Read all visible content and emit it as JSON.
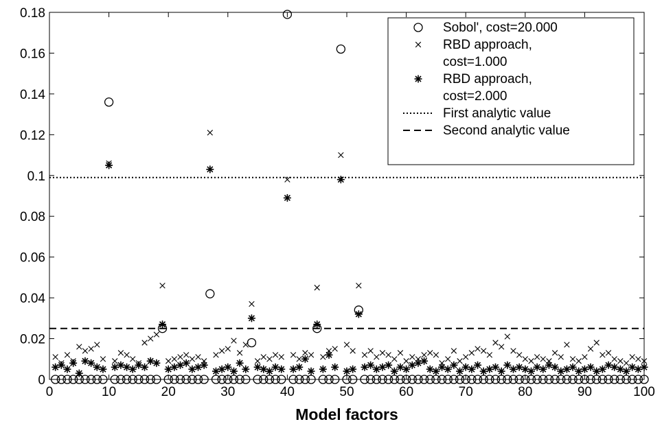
{
  "chart_data": {
    "type": "scatter",
    "title": "",
    "xlabel": "Model factors",
    "ylabel": "",
    "xlim": [
      0,
      100
    ],
    "ylim": [
      0,
      0.18
    ],
    "xticks": [
      0,
      10,
      20,
      30,
      40,
      50,
      60,
      70,
      80,
      90,
      100
    ],
    "yticks": [
      0,
      0.02,
      0.04,
      0.06,
      0.08,
      0.1,
      0.12,
      0.14,
      0.16,
      0.18
    ],
    "grid": false,
    "legend_position": "top-right",
    "series": [
      {
        "name": "Sobol', cost=20.000",
        "marker": "circle",
        "points": [
          [
            10,
            0.136
          ],
          [
            19,
            0.025
          ],
          [
            27,
            0.042
          ],
          [
            34,
            0.018
          ],
          [
            40,
            0.179
          ],
          [
            45,
            0.025
          ],
          [
            49,
            0.162
          ],
          [
            52,
            0.034
          ]
        ],
        "baseline_value": 0.0
      },
      {
        "name": "RBD approach,\ncost=1.000",
        "marker": "x",
        "points": [
          [
            1,
            0.011
          ],
          [
            2,
            0.008
          ],
          [
            3,
            0.012
          ],
          [
            4,
            0.009
          ],
          [
            5,
            0.016
          ],
          [
            6,
            0.014
          ],
          [
            7,
            0.015
          ],
          [
            8,
            0.017
          ],
          [
            9,
            0.01
          ],
          [
            10,
            0.106
          ],
          [
            11,
            0.009
          ],
          [
            12,
            0.013
          ],
          [
            13,
            0.012
          ],
          [
            14,
            0.01
          ],
          [
            15,
            0.008
          ],
          [
            16,
            0.018
          ],
          [
            17,
            0.02
          ],
          [
            18,
            0.022
          ],
          [
            19,
            0.046
          ],
          [
            20,
            0.009
          ],
          [
            21,
            0.01
          ],
          [
            22,
            0.011
          ],
          [
            23,
            0.012
          ],
          [
            24,
            0.01
          ],
          [
            25,
            0.011
          ],
          [
            26,
            0.009
          ],
          [
            27,
            0.121
          ],
          [
            28,
            0.012
          ],
          [
            29,
            0.014
          ],
          [
            30,
            0.015
          ],
          [
            31,
            0.019
          ],
          [
            32,
            0.013
          ],
          [
            33,
            0.017
          ],
          [
            34,
            0.037
          ],
          [
            35,
            0.009
          ],
          [
            36,
            0.011
          ],
          [
            37,
            0.01
          ],
          [
            38,
            0.012
          ],
          [
            39,
            0.011
          ],
          [
            40,
            0.098
          ],
          [
            41,
            0.012
          ],
          [
            42,
            0.01
          ],
          [
            43,
            0.013
          ],
          [
            44,
            0.012
          ],
          [
            45,
            0.045
          ],
          [
            46,
            0.011
          ],
          [
            47,
            0.014
          ],
          [
            48,
            0.015
          ],
          [
            49,
            0.11
          ],
          [
            50,
            0.017
          ],
          [
            51,
            0.014
          ],
          [
            52,
            0.046
          ],
          [
            53,
            0.012
          ],
          [
            54,
            0.014
          ],
          [
            55,
            0.011
          ],
          [
            56,
            0.013
          ],
          [
            57,
            0.012
          ],
          [
            58,
            0.01
          ],
          [
            59,
            0.013
          ],
          [
            60,
            0.009
          ],
          [
            61,
            0.011
          ],
          [
            62,
            0.01
          ],
          [
            63,
            0.012
          ],
          [
            64,
            0.013
          ],
          [
            65,
            0.012
          ],
          [
            66,
            0.008
          ],
          [
            67,
            0.01
          ],
          [
            68,
            0.014
          ],
          [
            69,
            0.009
          ],
          [
            70,
            0.011
          ],
          [
            71,
            0.013
          ],
          [
            72,
            0.015
          ],
          [
            73,
            0.014
          ],
          [
            74,
            0.012
          ],
          [
            75,
            0.018
          ],
          [
            76,
            0.016
          ],
          [
            77,
            0.021
          ],
          [
            78,
            0.014
          ],
          [
            79,
            0.012
          ],
          [
            80,
            0.01
          ],
          [
            81,
            0.009
          ],
          [
            82,
            0.011
          ],
          [
            83,
            0.01
          ],
          [
            84,
            0.009
          ],
          [
            85,
            0.013
          ],
          [
            86,
            0.011
          ],
          [
            87,
            0.017
          ],
          [
            88,
            0.01
          ],
          [
            89,
            0.009
          ],
          [
            90,
            0.011
          ],
          [
            91,
            0.015
          ],
          [
            92,
            0.018
          ],
          [
            93,
            0.012
          ],
          [
            94,
            0.013
          ],
          [
            95,
            0.01
          ],
          [
            96,
            0.009
          ],
          [
            97,
            0.008
          ],
          [
            98,
            0.011
          ],
          [
            99,
            0.01
          ],
          [
            100,
            0.009
          ]
        ]
      },
      {
        "name": "RBD approach,\ncost=2.000",
        "marker": "asterisk",
        "points": [
          [
            1,
            0.006
          ],
          [
            2,
            0.007
          ],
          [
            3,
            0.005
          ],
          [
            4,
            0.008
          ],
          [
            5,
            0.003
          ],
          [
            6,
            0.009
          ],
          [
            7,
            0.008
          ],
          [
            8,
            0.006
          ],
          [
            9,
            0.005
          ],
          [
            10,
            0.105
          ],
          [
            11,
            0.006
          ],
          [
            12,
            0.007
          ],
          [
            13,
            0.006
          ],
          [
            14,
            0.005
          ],
          [
            15,
            0.007
          ],
          [
            16,
            0.006
          ],
          [
            17,
            0.009
          ],
          [
            18,
            0.008
          ],
          [
            19,
            0.027
          ],
          [
            20,
            0.005
          ],
          [
            21,
            0.006
          ],
          [
            22,
            0.007
          ],
          [
            23,
            0.008
          ],
          [
            24,
            0.005
          ],
          [
            25,
            0.006
          ],
          [
            26,
            0.007
          ],
          [
            27,
            0.103
          ],
          [
            28,
            0.004
          ],
          [
            29,
            0.005
          ],
          [
            30,
            0.006
          ],
          [
            31,
            0.004
          ],
          [
            32,
            0.008
          ],
          [
            33,
            0.005
          ],
          [
            34,
            0.03
          ],
          [
            35,
            0.006
          ],
          [
            36,
            0.005
          ],
          [
            37,
            0.004
          ],
          [
            38,
            0.006
          ],
          [
            39,
            0.005
          ],
          [
            40,
            0.089
          ],
          [
            41,
            0.005
          ],
          [
            42,
            0.006
          ],
          [
            43,
            0.01
          ],
          [
            44,
            0.004
          ],
          [
            45,
            0.027
          ],
          [
            46,
            0.005
          ],
          [
            47,
            0.012
          ],
          [
            48,
            0.006
          ],
          [
            49,
            0.098
          ],
          [
            50,
            0.004
          ],
          [
            51,
            0.005
          ],
          [
            52,
            0.032
          ],
          [
            53,
            0.006
          ],
          [
            54,
            0.007
          ],
          [
            55,
            0.005
          ],
          [
            56,
            0.006
          ],
          [
            57,
            0.007
          ],
          [
            58,
            0.004
          ],
          [
            59,
            0.006
          ],
          [
            60,
            0.005
          ],
          [
            61,
            0.007
          ],
          [
            62,
            0.008
          ],
          [
            63,
            0.009
          ],
          [
            64,
            0.005
          ],
          [
            65,
            0.004
          ],
          [
            66,
            0.006
          ],
          [
            67,
            0.005
          ],
          [
            68,
            0.007
          ],
          [
            69,
            0.004
          ],
          [
            70,
            0.006
          ],
          [
            71,
            0.005
          ],
          [
            72,
            0.007
          ],
          [
            73,
            0.004
          ],
          [
            74,
            0.005
          ],
          [
            75,
            0.006
          ],
          [
            76,
            0.004
          ],
          [
            77,
            0.007
          ],
          [
            78,
            0.005
          ],
          [
            79,
            0.006
          ],
          [
            80,
            0.005
          ],
          [
            81,
            0.004
          ],
          [
            82,
            0.006
          ],
          [
            83,
            0.005
          ],
          [
            84,
            0.007
          ],
          [
            85,
            0.006
          ],
          [
            86,
            0.004
          ],
          [
            87,
            0.005
          ],
          [
            88,
            0.006
          ],
          [
            89,
            0.004
          ],
          [
            90,
            0.005
          ],
          [
            91,
            0.006
          ],
          [
            92,
            0.004
          ],
          [
            93,
            0.005
          ],
          [
            94,
            0.007
          ],
          [
            95,
            0.006
          ],
          [
            96,
            0.005
          ],
          [
            97,
            0.004
          ],
          [
            98,
            0.006
          ],
          [
            99,
            0.005
          ],
          [
            100,
            0.006
          ]
        ]
      },
      {
        "name": "First analytic value",
        "type": "hline",
        "style": "dotted",
        "y": 0.099
      },
      {
        "name": "Second analytic value",
        "type": "hline",
        "style": "dashed",
        "y": 0.025
      }
    ]
  }
}
